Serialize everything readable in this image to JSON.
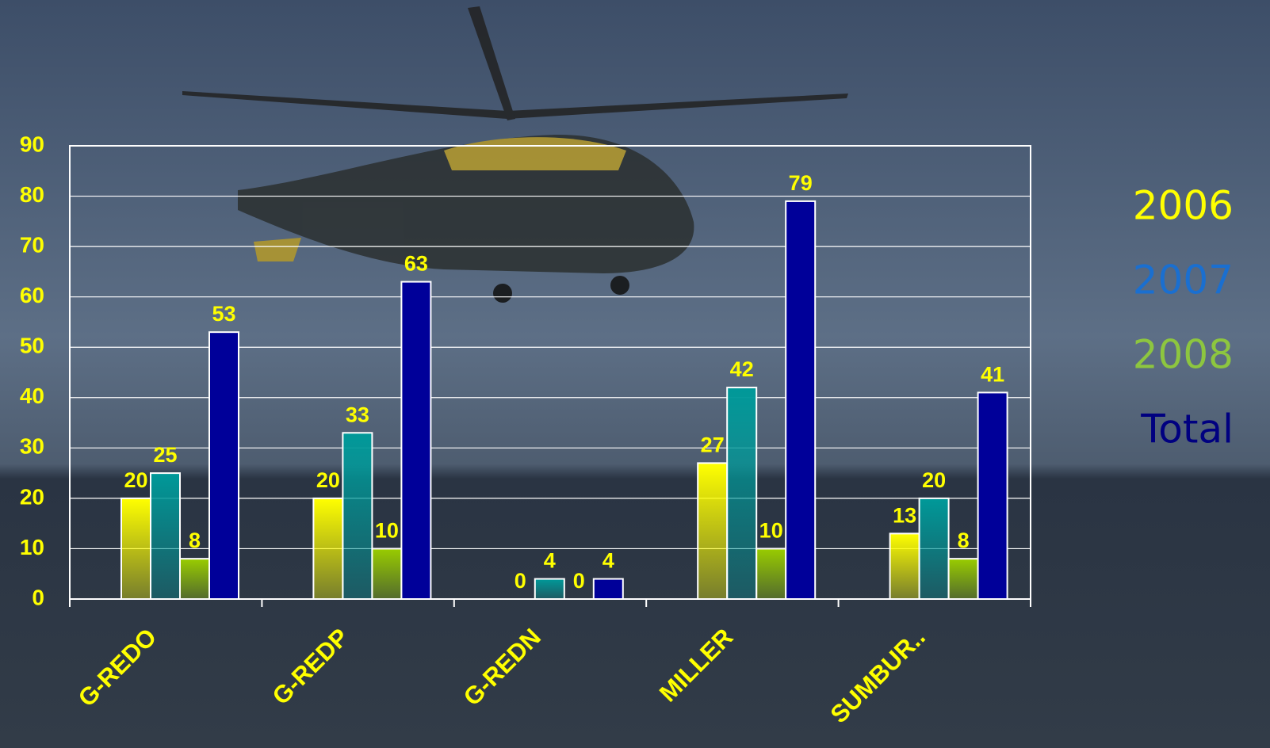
{
  "chart_data": {
    "type": "bar",
    "categories": [
      "G-REDO",
      "G-REDP",
      "G-REDN",
      "MILLER",
      "SUMBUR.."
    ],
    "series": [
      {
        "name": "2006",
        "color": "#ffff00",
        "values": [
          20,
          20,
          0,
          27,
          13
        ]
      },
      {
        "name": "2007",
        "color": "#009999",
        "values": [
          25,
          33,
          4,
          42,
          20
        ]
      },
      {
        "name": "2008",
        "color": "#99cc00",
        "values": [
          8,
          10,
          0,
          10,
          8
        ]
      },
      {
        "name": "Total",
        "color": "#000099",
        "values": [
          53,
          63,
          4,
          79,
          41
        ]
      }
    ],
    "legend_colors": [
      "#ffff00",
      "#1a6fd0",
      "#8dc63f",
      "#000080"
    ],
    "ylim": [
      0,
      90
    ],
    "yticks": [
      0,
      10,
      20,
      30,
      40,
      50,
      60,
      70,
      80,
      90
    ],
    "grid": true,
    "legend": "right"
  }
}
